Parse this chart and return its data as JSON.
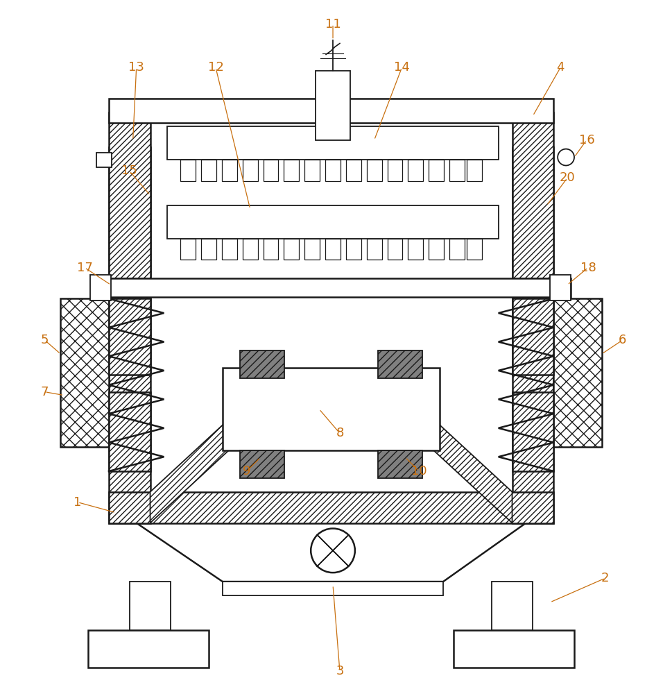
{
  "bg_color": "#ffffff",
  "line_color": "#1a1a1a",
  "label_color": "#c87010",
  "fig_width": 9.69,
  "fig_height": 10.0
}
